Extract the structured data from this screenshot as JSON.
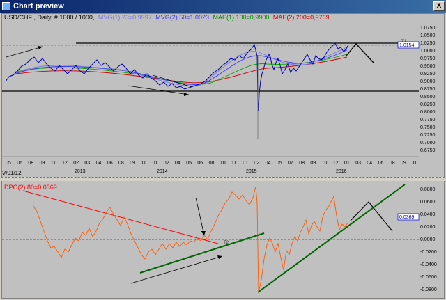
{
  "window": {
    "title": "Chart preview",
    "close_label": "X"
  },
  "price_chart": {
    "legend": {
      "symbol": "USD/CHF , Daily, # 1000 / 1000,",
      "mvg1": "MVG(1) 23=0,9997",
      "mvg2": "MVG(2) 50=1,0023",
      "mae1": "MAE(1) 100=0,9900",
      "mae2": "MAE(2) 200=0,9769"
    },
    "current_price_label": "1.0154",
    "t1_label": "T1",
    "y_ticks": [
      "1.0750",
      "1.0500",
      "1.0250",
      "1.0000",
      "0.9750",
      "0.9500",
      "0.9250",
      "0.9000",
      "0.8750",
      "0.8500",
      "0.8250",
      "0.8000",
      "0.7750",
      "0.7500",
      "0.7250",
      "0.7000",
      "0.6750"
    ],
    "x_month_ticks": [
      "05",
      "06",
      "08",
      "09",
      "11",
      "12",
      "02",
      "03",
      "04",
      "06",
      "08",
      "09",
      "11",
      "01",
      "02",
      "04",
      "05",
      "06",
      "08",
      "10",
      "11",
      "01",
      "02",
      "04",
      "05",
      "07",
      "08",
      "09",
      "10",
      "12",
      "01",
      "03",
      "04",
      "06",
      "08",
      "09",
      "11"
    ],
    "x_year_labels": [
      "2013",
      "2014",
      "2015",
      "2016"
    ]
  },
  "oscillator": {
    "date_label": "V/01/12",
    "legend": "DPO(2) 80=0.0369",
    "current_value_label": "0.0369",
    "t2_label": "T2",
    "y_ticks": [
      "0.0800",
      "0.0600",
      "0.0400",
      "0.0200",
      "0.0000",
      "-0.0200",
      "-0.0400",
      "-0.0600",
      "-0.0800"
    ]
  },
  "colors": {
    "price": "#0000aa",
    "mvg1": "#7777dd",
    "mvg2": "#3333ff",
    "mae1": "#00aa00",
    "mae2": "#cc0000",
    "oscillator": "#ff5a00",
    "trend_green": "#006400",
    "trend_red": "#ff0000",
    "annotation": "#000000"
  }
}
